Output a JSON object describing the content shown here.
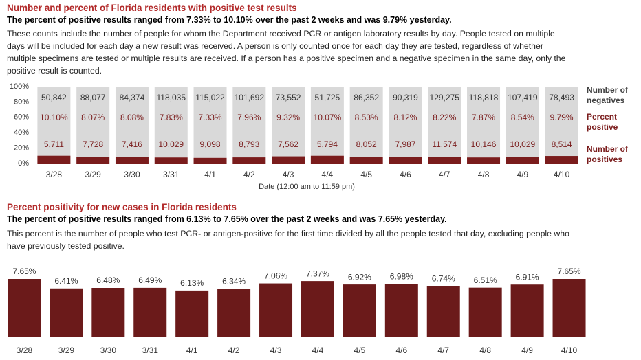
{
  "chart_data": [
    {
      "type": "stacked_percent_bar",
      "title": "Number and percent of Florida residents with positive test results",
      "subtitle": "The percent of positive results ranged from 7.33% to 10.10% over the past 2 weeks and was 9.79% yesterday.",
      "description": "These counts include the number of people for whom the Department received PCR or antigen laboratory results by day. People tested on multiple days will be included for each day a new result was received. A person is only counted once for each day they are tested, regardless of whether multiple specimens are tested or multiple results are received. If a person has a positive specimen and a negative specimen in the same day, only the positive result is counted.",
      "x_label": "Date (12:00 am to 11:59 pm)",
      "categories": [
        "3/28",
        "3/29",
        "3/30",
        "3/31",
        "4/1",
        "4/2",
        "4/3",
        "4/4",
        "4/5",
        "4/6",
        "4/7",
        "4/8",
        "4/9",
        "4/10"
      ],
      "ylim": [
        0,
        100
      ],
      "yticks": [
        {
          "value": 0,
          "label": "0%"
        },
        {
          "value": 20,
          "label": "20%"
        },
        {
          "value": 40,
          "label": "40%"
        },
        {
          "value": 60,
          "label": "60%"
        },
        {
          "value": 80,
          "label": "80%"
        },
        {
          "value": 100,
          "label": "100%"
        }
      ],
      "series": [
        {
          "name": "Number of negatives",
          "color": "#d9d9d9",
          "values": [
            50842,
            88077,
            84374,
            118035,
            115022,
            101692,
            73552,
            51725,
            86352,
            90319,
            129275,
            118818,
            107419,
            78493
          ],
          "value_labels": [
            "50,842",
            "88,077",
            "84,374",
            "118,035",
            "115,022",
            "101,692",
            "73,552",
            "51,725",
            "86,352",
            "90,319",
            "129,275",
            "118,818",
            "107,419",
            "78,493"
          ]
        },
        {
          "name": "Percent positive",
          "color": "#7a1c1c",
          "values": [
            10.1,
            8.07,
            8.08,
            7.83,
            7.33,
            7.96,
            9.32,
            10.07,
            8.53,
            8.12,
            8.22,
            7.87,
            8.54,
            9.79
          ],
          "value_labels": [
            "10.10%",
            "8.07%",
            "8.08%",
            "7.83%",
            "7.33%",
            "7.96%",
            "9.32%",
            "10.07%",
            "8.53%",
            "8.12%",
            "8.22%",
            "7.87%",
            "8.54%",
            "9.79%"
          ]
        },
        {
          "name": "Number of positives",
          "color": "#7a1c1c",
          "values": [
            5711,
            7728,
            7416,
            10029,
            9098,
            8793,
            7562,
            5794,
            8052,
            7987,
            11574,
            10146,
            10029,
            8514
          ],
          "value_labels": [
            "5,711",
            "7,728",
            "7,416",
            "10,029",
            "9,098",
            "8,793",
            "7,562",
            "5,794",
            "8,052",
            "7,987",
            "11,574",
            "10,146",
            "10,029",
            "8,514"
          ]
        }
      ]
    },
    {
      "type": "bar",
      "title": "Percent positivity for new cases in Florida residents",
      "subtitle": "The percent of positive results ranged from 6.13% to 7.65% over the past 2 weeks and was 7.65% yesterday.",
      "description": "This percent is the number of people who test PCR- or antigen-positive for the first time divided by all the people tested that day, excluding people who have previously tested positive.",
      "categories": [
        "3/28",
        "3/29",
        "3/30",
        "3/31",
        "4/1",
        "4/2",
        "4/3",
        "4/4",
        "4/5",
        "4/6",
        "4/7",
        "4/8",
        "4/9",
        "4/10"
      ],
      "color": "#6b1a1a",
      "values": [
        7.65,
        6.41,
        6.48,
        6.49,
        6.13,
        6.34,
        7.06,
        7.37,
        6.92,
        6.98,
        6.74,
        6.51,
        6.91,
        7.65
      ],
      "value_labels": [
        "7.65%",
        "6.41%",
        "6.48%",
        "6.49%",
        "6.13%",
        "6.34%",
        "7.06%",
        "7.37%",
        "6.92%",
        "6.98%",
        "6.74%",
        "6.51%",
        "6.91%",
        "7.65%"
      ]
    }
  ]
}
